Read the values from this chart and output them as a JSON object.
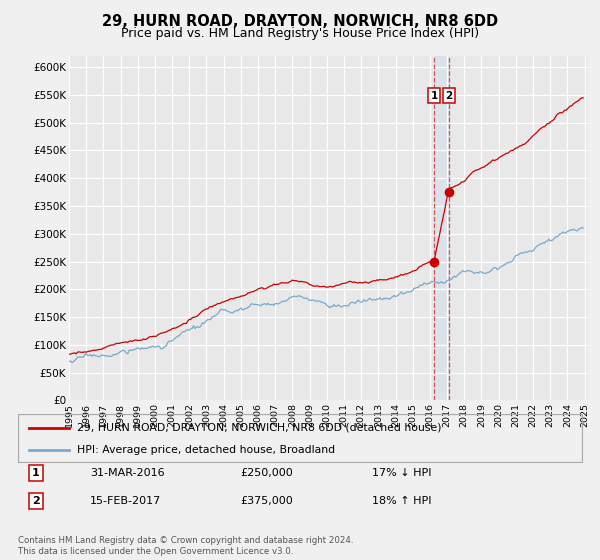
{
  "title": "29, HURN ROAD, DRAYTON, NORWICH, NR8 6DD",
  "subtitle": "Price paid vs. HM Land Registry's House Price Index (HPI)",
  "title_fontsize": 10.5,
  "subtitle_fontsize": 9,
  "ylabel_values": [
    "£0",
    "£50K",
    "£100K",
    "£150K",
    "£200K",
    "£250K",
    "£300K",
    "£350K",
    "£400K",
    "£450K",
    "£500K",
    "£550K",
    "£600K"
  ],
  "ytick_values": [
    0,
    50000,
    100000,
    150000,
    200000,
    250000,
    300000,
    350000,
    400000,
    450000,
    500000,
    550000,
    600000
  ],
  "xlim_start": 1995.0,
  "xlim_end": 2025.2,
  "ylim_min": 0,
  "ylim_max": 620000,
  "background_color": "#f0f0f0",
  "plot_bg_color": "#e8e8e8",
  "grid_color": "#ffffff",
  "red_line_color": "#cc0000",
  "blue_line_color": "#77aacc",
  "marker1_year": 2016.24,
  "marker1_price": 250000,
  "marker2_year": 2017.12,
  "marker2_price": 375000,
  "vspan_color": "#ddddff",
  "vline_color": "#cc4444",
  "legend_line1": "29, HURN ROAD, DRAYTON, NORWICH, NR8 6DD (detached house)",
  "legend_line2": "HPI: Average price, detached house, Broadland",
  "table_row1_num": "1",
  "table_row1_date": "31-MAR-2016",
  "table_row1_price": "£250,000",
  "table_row1_hpi": "17% ↓ HPI",
  "table_row2_num": "2",
  "table_row2_date": "15-FEB-2017",
  "table_row2_price": "£375,000",
  "table_row2_hpi": "18% ↑ HPI",
  "footnote": "Contains HM Land Registry data © Crown copyright and database right 2024.\nThis data is licensed under the Open Government Licence v3.0."
}
